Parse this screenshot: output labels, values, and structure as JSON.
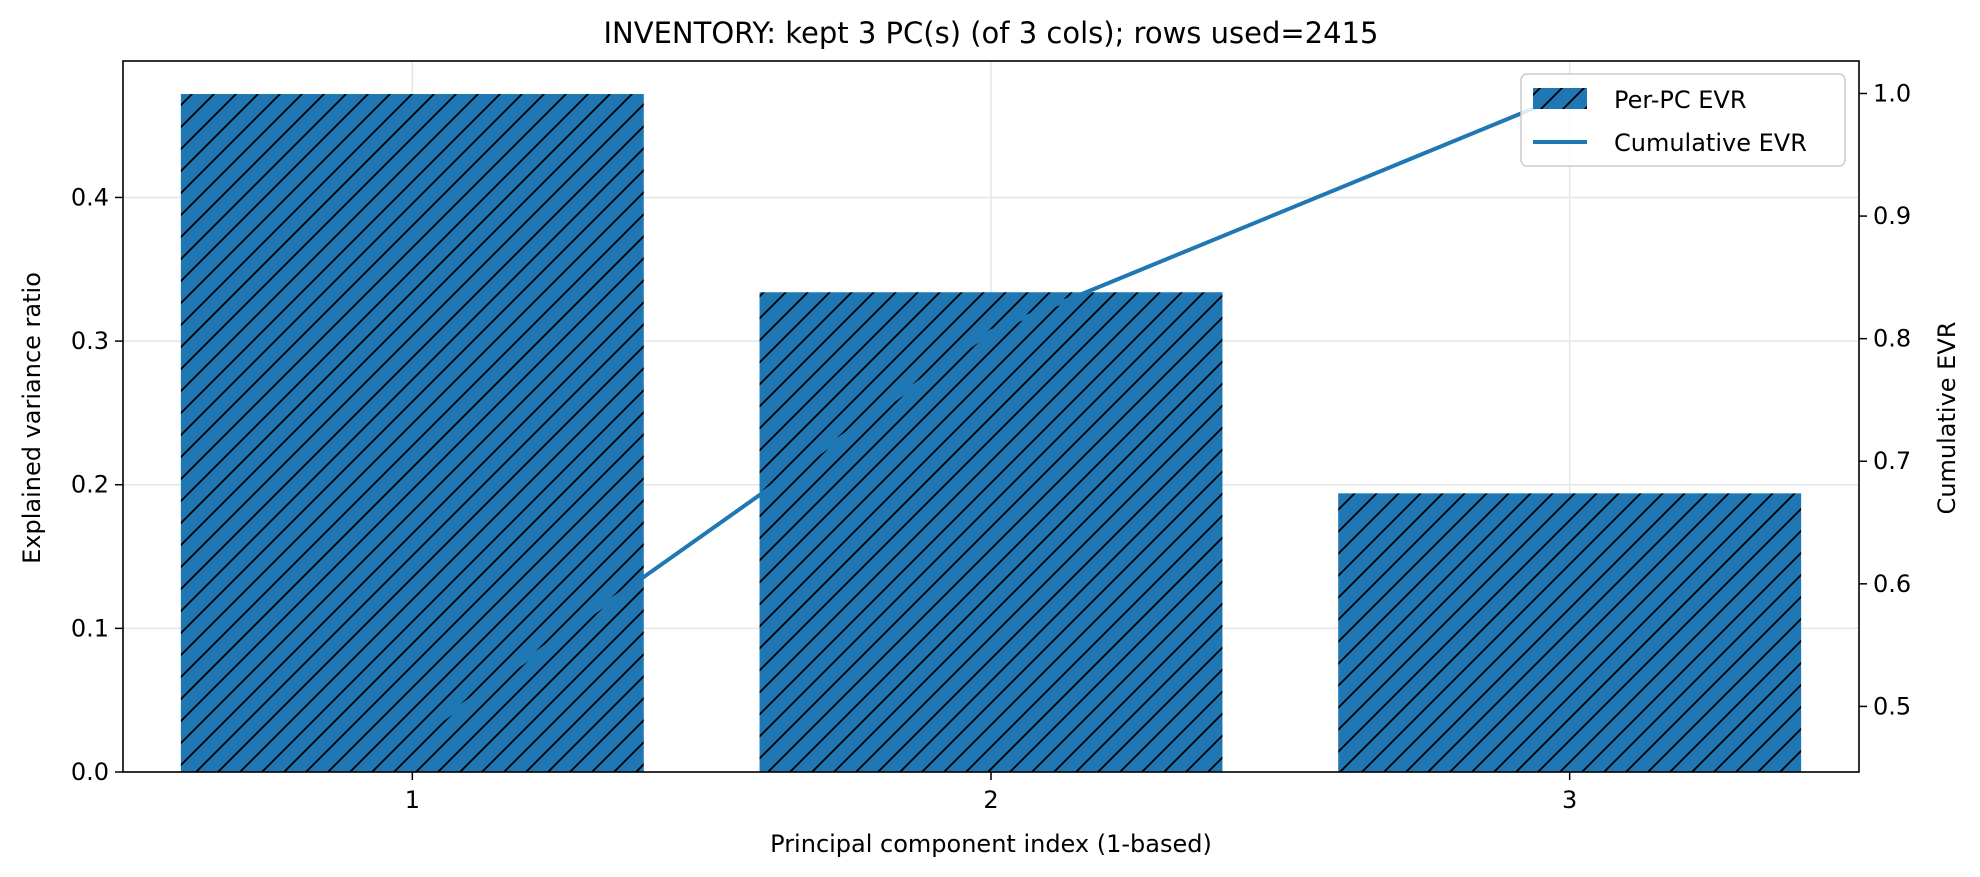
{
  "chart_data": {
    "type": "bar",
    "title": "INVENTORY: kept 3 PC(s) (of 3 cols); rows used=2415",
    "xlabel": "Principal component index (1-based)",
    "ylabel": "Explained variance ratio",
    "y2label": "Cumulative EVR",
    "categories": [
      "1",
      "2",
      "3"
    ],
    "series": [
      {
        "name": "Per-PC EVR",
        "type": "bar",
        "axis": "left",
        "values": [
          0.472,
          0.334,
          0.194
        ],
        "hatch": "diagonal"
      },
      {
        "name": "Cumulative EVR",
        "type": "line",
        "axis": "right",
        "values": [
          0.472,
          0.806,
          1.0
        ]
      }
    ],
    "ylim": [
      0,
      0.495
    ],
    "y2lim": [
      0.4465,
      1.0265
    ],
    "yticks": [
      0.0,
      0.1,
      0.2,
      0.3,
      0.4
    ],
    "ytick_labels": [
      "0.0",
      "0.1",
      "0.2",
      "0.3",
      "0.4"
    ],
    "y2ticks": [
      0.5,
      0.6,
      0.7,
      0.8,
      0.9,
      1.0
    ],
    "y2tick_labels": [
      "0.5",
      "0.6",
      "0.7",
      "0.8",
      "0.9",
      "1.0"
    ],
    "grid": true,
    "legend_position": "upper-right",
    "colors": {
      "bar": "#1f77b4",
      "line": "#1f77b4",
      "hatch": "#000000",
      "grid": "#e5e5e5"
    }
  }
}
